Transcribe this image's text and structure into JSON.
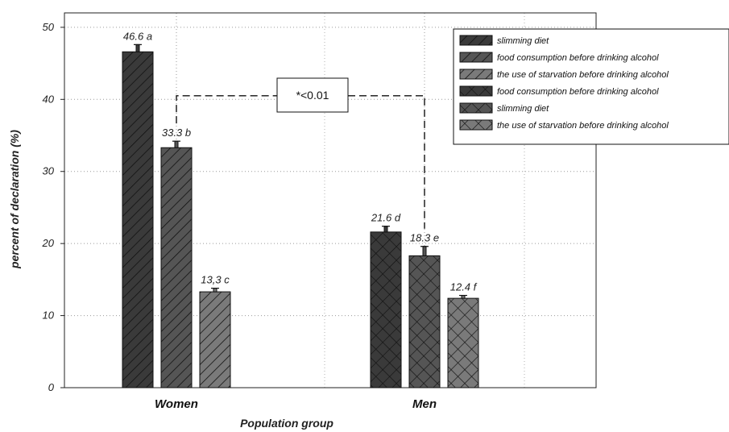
{
  "chart_data": {
    "type": "bar",
    "title": "",
    "xlabel": "Population group",
    "ylabel": "percent of declaration (%)",
    "ylim": [
      0,
      52
    ],
    "yticks": [
      "0",
      "10",
      "20",
      "30",
      "40",
      "50"
    ],
    "categories": [
      "Women",
      "Men"
    ],
    "bars": [
      {
        "group": "Women",
        "legend_index": 0,
        "value": 46.6,
        "error": 1.0,
        "label": "46.6 a",
        "color": "#3a3a3a",
        "pattern": "hatch"
      },
      {
        "group": "Women",
        "legend_index": 1,
        "value": 33.3,
        "error": 0.9,
        "label": "33.3 b",
        "color": "#555555",
        "pattern": "hatch"
      },
      {
        "group": "Women",
        "legend_index": 2,
        "value": 13.3,
        "error": 0.5,
        "label": "13,3 c",
        "color": "#7a7a7a",
        "pattern": "hatch"
      },
      {
        "group": "Men",
        "legend_index": 3,
        "value": 21.6,
        "error": 0.8,
        "label": "21.6 d",
        "color": "#3a3a3a",
        "pattern": "cross"
      },
      {
        "group": "Men",
        "legend_index": 4,
        "value": 18.3,
        "error": 1.3,
        "label": "18.3 e",
        "color": "#555555",
        "pattern": "cross"
      },
      {
        "group": "Men",
        "legend_index": 5,
        "value": 12.4,
        "error": 0.4,
        "label": "12.4 f",
        "color": "#7a7a7a",
        "pattern": "cross"
      }
    ],
    "legend": [
      {
        "label": "slimming diet",
        "color": "#3a3a3a",
        "pattern": "hatch"
      },
      {
        "label": "food consumption before drinking alcohol",
        "color": "#555555",
        "pattern": "hatch"
      },
      {
        "label": "the use of starvation before drinking alcohol",
        "color": "#7a7a7a",
        "pattern": "hatch"
      },
      {
        "label": "food consumption before drinking alcohol",
        "color": "#3a3a3a",
        "pattern": "cross"
      },
      {
        "label": "slimming diet",
        "color": "#555555",
        "pattern": "cross"
      },
      {
        "label": "the use of starvation before drinking alcohol",
        "color": "#7a7a7a",
        "pattern": "cross"
      }
    ],
    "legend_position": "top-right",
    "annotation": {
      "text": "*<0.01",
      "from_legend_index": 1,
      "to_legend_index": 4
    },
    "grid": true
  }
}
